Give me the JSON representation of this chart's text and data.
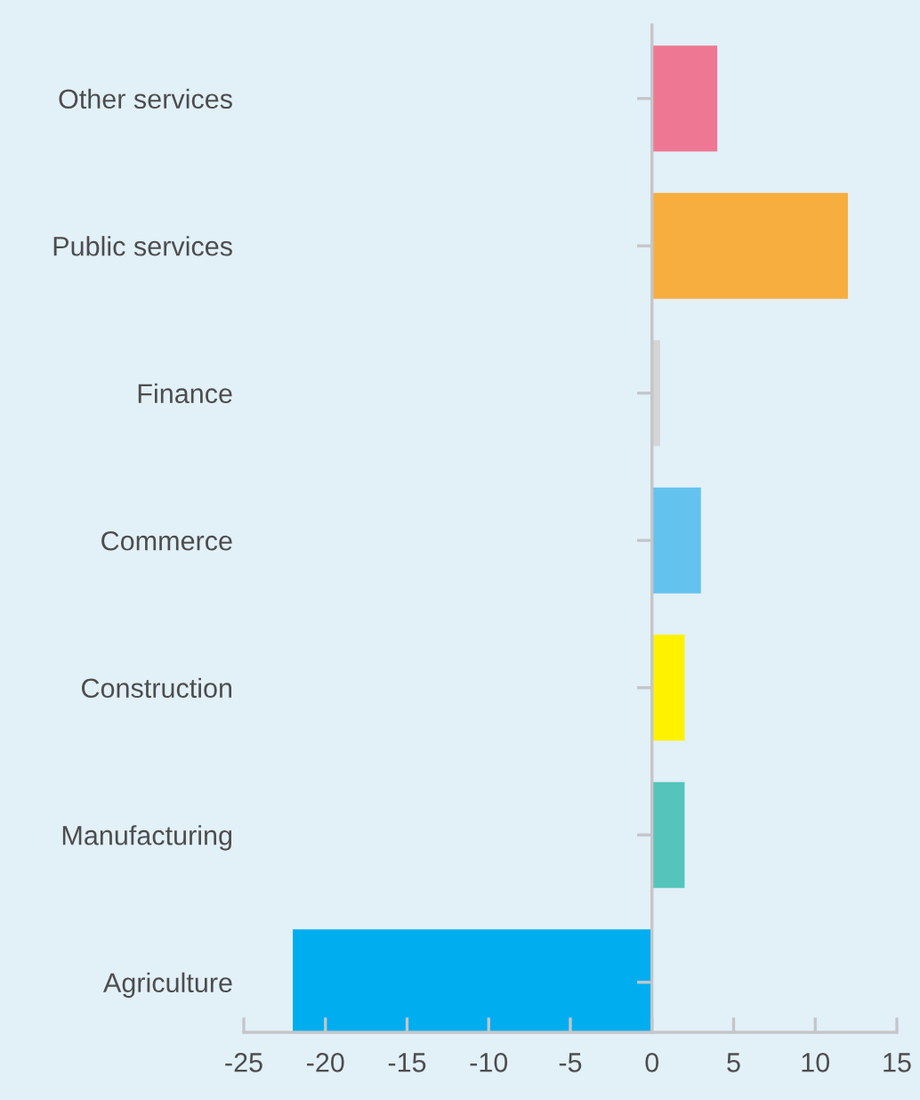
{
  "chart_data": {
    "type": "bar",
    "orientation": "horizontal",
    "categories": [
      "Other services",
      "Public services",
      "Finance",
      "Commerce",
      "Construction",
      "Manufacturing",
      "Agriculture"
    ],
    "values": [
      4.0,
      12.0,
      0.5,
      3.0,
      2.0,
      2.0,
      -22.0
    ],
    "colors": [
      "#ee7893",
      "#f7ae3e",
      "#d5d5d7",
      "#64c2ee",
      "#fff200",
      "#55c4bb",
      "#00aeef"
    ],
    "xlim": [
      -25,
      15
    ],
    "xticks": [
      -25,
      -20,
      -15,
      -10,
      -5,
      0,
      5,
      10,
      15
    ]
  }
}
